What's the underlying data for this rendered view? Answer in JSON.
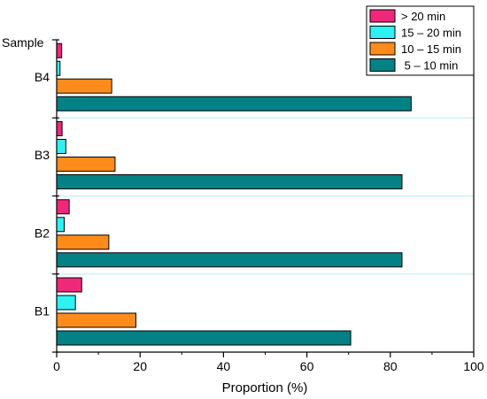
{
  "chart_data": {
    "type": "bar",
    "orientation": "horizontal",
    "ylabel_top": "Sample",
    "xlabel": "Proportion (%)",
    "xlim": [
      0,
      100
    ],
    "xticks": [
      0,
      20,
      40,
      60,
      80,
      100
    ],
    "categories": [
      "B4",
      "B3",
      "B2",
      "B1"
    ],
    "series": [
      {
        "name": "> 20 min",
        "color": "#f0287a",
        "values": [
          1.2,
          1.3,
          3.0,
          6.0
        ]
      },
      {
        "name": "15 – 20 min",
        "color": "#2ef2f2",
        "values": [
          0.8,
          2.2,
          1.8,
          4.5
        ]
      },
      {
        "name": "10 – 15 min",
        "color": "#ff8c1a",
        "values": [
          13.2,
          14.0,
          12.5,
          19.0
        ]
      },
      {
        "name": " 5 – 10 min",
        "color": "#048184",
        "values": [
          85.0,
          82.8,
          82.8,
          70.5
        ]
      }
    ],
    "legend_position": "top-right",
    "grid": "horizontal separators"
  }
}
